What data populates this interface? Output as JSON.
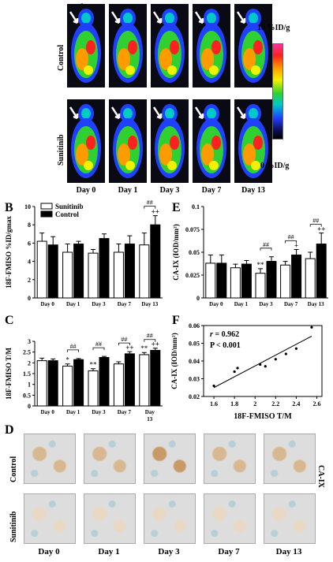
{
  "panels": {
    "A": "A",
    "B": "B",
    "C": "C",
    "D": "D",
    "E": "E",
    "F": "F"
  },
  "petA": {
    "rows": [
      "Control",
      "Sunitinib"
    ],
    "days": [
      "Day 0",
      "Day 1",
      "Day 3",
      "Day 7",
      "Day 13"
    ],
    "scale_top": "10 %ID/g",
    "scale_bottom": "0 %ID/g",
    "colormap_colors": [
      "#ff30a0",
      "#ff2020",
      "#ff9a00",
      "#f2f200",
      "#30d030",
      "#00c8c8",
      "#2040ff",
      "#101060",
      "#000000"
    ]
  },
  "ihcD": {
    "rows": [
      "Control",
      "Sunitinib"
    ],
    "days": [
      "Day 0",
      "Day 1",
      "Day 3",
      "Day 7",
      "Day 13"
    ],
    "stain_label": "CA-IX",
    "tile_colors": [
      "#e9d9c4",
      "#d8b890",
      "#c79a66",
      "#b7d0d8",
      "#ddd"
    ]
  },
  "chart_data": [
    {
      "panel": "B",
      "type": "bar",
      "categories": [
        "Day 0",
        "Day 1",
        "Day 3",
        "Day 7",
        "Day 13"
      ],
      "ylabel": "18F-FMISO %ID/gmax",
      "ylim": [
        0,
        10
      ],
      "yticks": [
        "0",
        "2",
        "4",
        "6",
        "8",
        "10"
      ],
      "series": [
        {
          "name": "Sunitinib",
          "color": "#ffffff",
          "values": [
            6.2,
            5.0,
            4.9,
            5.0,
            5.8
          ],
          "errors": [
            0.9,
            0.9,
            0.4,
            0.9,
            1.3
          ]
        },
        {
          "name": "Control",
          "color": "#000000",
          "values": [
            5.8,
            5.9,
            6.5,
            5.9,
            8.0
          ],
          "errors": [
            0.9,
            0.3,
            0.5,
            0.9,
            1.0
          ]
        }
      ],
      "annotations": [
        {
          "category": "Day 13",
          "bracket": "##",
          "over": "++"
        }
      ],
      "legend": "top-left"
    },
    {
      "panel": "C",
      "type": "bar",
      "categories": [
        "Day 0",
        "Day 1",
        "Day 3",
        "Day 7",
        "Day 13"
      ],
      "ylabel": "18F-FMISO T/M",
      "ylim": [
        0,
        3
      ],
      "yticks": [
        "0",
        "0.5",
        "1",
        "1.5",
        "2",
        "2.5",
        "3"
      ],
      "series": [
        {
          "name": "Sunitinib",
          "color": "#ffffff",
          "values": [
            2.1,
            1.85,
            1.63,
            1.95,
            2.38
          ],
          "errors": [
            0.12,
            0.1,
            0.1,
            0.1,
            0.1
          ]
        },
        {
          "name": "Control",
          "color": "#000000",
          "values": [
            2.1,
            2.15,
            2.25,
            2.42,
            2.58
          ],
          "errors": [
            0.08,
            0.05,
            0.05,
            0.1,
            0.1
          ]
        }
      ],
      "stars": [
        "",
        "*",
        "**",
        "",
        "**"
      ],
      "brackets": [
        "",
        "##",
        "##",
        "##",
        "##"
      ],
      "plus": [
        "",
        "",
        "",
        "++",
        "++"
      ]
    },
    {
      "panel": "E",
      "type": "bar",
      "categories": [
        "Day 0",
        "Day 1",
        "Day 3",
        "Day 7",
        "Day 13"
      ],
      "ylabel": "CA-IX (IOD/mm²)",
      "ylim": [
        0,
        0.1
      ],
      "yticks": [
        "0",
        "0.025",
        "0.05",
        "0.075",
        "0.1"
      ],
      "series": [
        {
          "name": "Sunitinib",
          "color": "#ffffff",
          "values": [
            0.038,
            0.033,
            0.027,
            0.036,
            0.043
          ],
          "errors": [
            0.009,
            0.004,
            0.005,
            0.004,
            0.007
          ]
        },
        {
          "name": "Control",
          "color": "#000000",
          "values": [
            0.038,
            0.037,
            0.04,
            0.047,
            0.059
          ],
          "errors": [
            0.009,
            0.004,
            0.005,
            0.006,
            0.012
          ]
        }
      ],
      "stars": [
        "",
        "",
        "**",
        "",
        ""
      ],
      "brackets": [
        "",
        "",
        "##",
        "##",
        "##"
      ],
      "plus": [
        "",
        "",
        "",
        "+",
        "++"
      ]
    },
    {
      "panel": "F",
      "type": "scatter",
      "xlabel": "18F-FMISO T/M",
      "ylabel": "CA-IX (IOD/mm²)",
      "xlim": [
        1.5,
        2.65
      ],
      "ylim": [
        0.02,
        0.06
      ],
      "xticks": [
        "1.6",
        "1.8",
        "2",
        "2.2",
        "2.4",
        "2.6"
      ],
      "yticks": [
        "0.02",
        "0.03",
        "0.04",
        "0.05",
        "0.06"
      ],
      "x": [
        1.6,
        1.8,
        1.83,
        2.05,
        2.1,
        2.2,
        2.3,
        2.4,
        2.55
      ],
      "y": [
        0.026,
        0.034,
        0.036,
        0.038,
        0.037,
        0.041,
        0.044,
        0.047,
        0.059
      ],
      "fit": {
        "x": [
          1.6,
          2.55
        ],
        "y": [
          0.025,
          0.054
        ]
      },
      "stats": {
        "r_label": "r",
        "r_value": "= 0.962",
        "p": "P < 0.001"
      }
    }
  ]
}
